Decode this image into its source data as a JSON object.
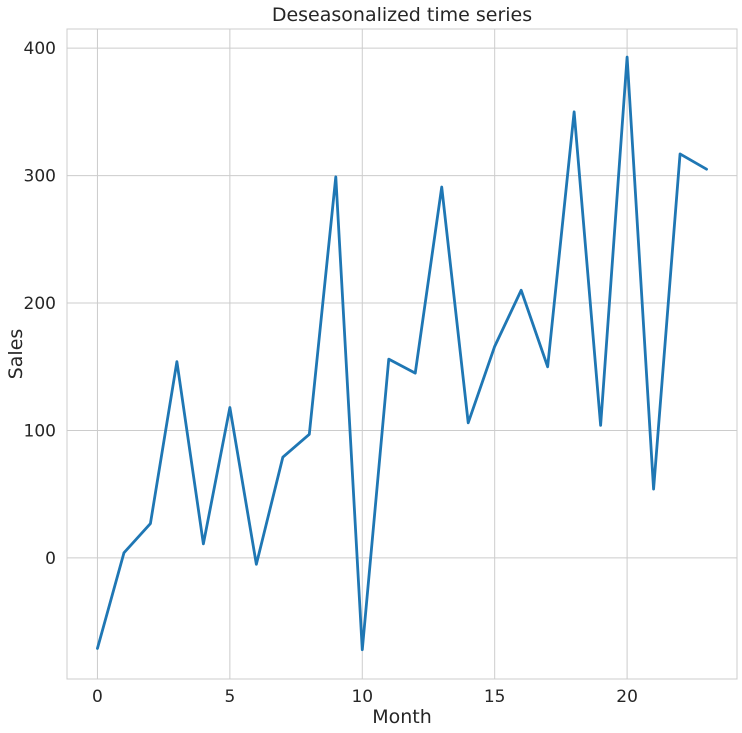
{
  "chart_data": {
    "type": "line",
    "title": "Deseasonalized time series",
    "xlabel": "Month",
    "ylabel": "Sales",
    "xlim": [
      -1.15,
      24.15
    ],
    "ylim": [
      -95,
      415
    ],
    "xticks": [
      0,
      5,
      10,
      15,
      20
    ],
    "yticks": [
      0,
      100,
      200,
      300,
      400
    ],
    "grid": true,
    "series": [
      {
        "x": [
          0,
          1,
          2,
          3,
          4,
          5,
          6,
          7,
          8,
          9,
          10,
          11,
          12,
          13,
          14,
          15,
          16,
          17,
          18,
          19,
          20,
          21,
          22,
          23
        ],
        "values": [
          -71,
          4,
          27,
          154,
          11,
          118,
          -5,
          79,
          97,
          299,
          -72,
          156,
          145,
          291,
          106,
          166,
          210,
          150,
          350,
          104,
          393,
          54,
          317,
          305
        ]
      }
    ],
    "colors": {
      "line": "#1f77b4",
      "grid": "#cccccc",
      "frame": "#cccccc",
      "text": "#262626"
    }
  }
}
